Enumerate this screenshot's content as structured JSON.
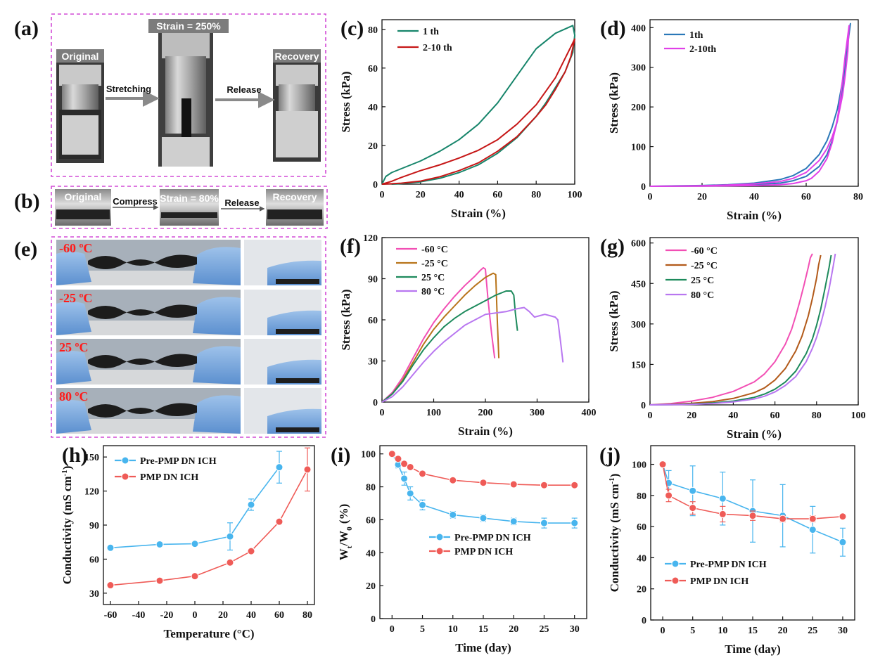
{
  "panels": {
    "a": {
      "label": "(a)",
      "strain_text": "Strain = 250%",
      "original": "Original",
      "recovery": "Recovery",
      "stretching": "Stretching",
      "release": "Release"
    },
    "b": {
      "label": "(b)",
      "original": "Original",
      "compress": "Compress",
      "strain_text": "Strain = 80%",
      "release": "Release",
      "recovery": "Recovery"
    },
    "e": {
      "label": "(e)",
      "temps": [
        "-60 ºC",
        "-25 ºC",
        "25 ºC",
        "80 ºC"
      ]
    }
  },
  "colors": {
    "teal": "#17856b",
    "red": "#c61717",
    "blue": "#2a78b8",
    "magenta": "#e040e8",
    "pink": "#f24fb4",
    "brown": "#b8741a",
    "green": "#1d8a5c",
    "violet": "#b877f0",
    "darkorange": "#b25a1a",
    "cyan": "#48b5ee",
    "salmon": "#ef5b57",
    "dashed_frame": "#d24bd6"
  },
  "chart_data": [
    {
      "id": "c",
      "panel_label": "(c)",
      "type": "line",
      "xlabel": "Strain (%)",
      "ylabel": "Stress (kPa)",
      "xlim": [
        0,
        100
      ],
      "ylim": [
        0,
        85
      ],
      "xticks": [
        "0",
        "20",
        "40",
        "60",
        "80",
        "100"
      ],
      "yticks": [
        "0",
        "20",
        "40",
        "60",
        "80"
      ],
      "legend": "top-left",
      "series": [
        {
          "name": "1 th",
          "color": "#17856b",
          "x": [
            0,
            2,
            5,
            10,
            20,
            30,
            40,
            50,
            60,
            70,
            80,
            90,
            99,
            100,
            99,
            95,
            90,
            85,
            80,
            70,
            60,
            50,
            40,
            30,
            20,
            10,
            5
          ],
          "y": [
            0,
            4,
            6,
            8,
            12,
            17,
            23,
            31,
            42,
            56,
            70,
            78,
            82,
            77,
            68,
            58,
            50,
            42,
            35,
            24,
            16,
            10,
            6,
            3,
            1.2,
            0.3,
            0
          ]
        },
        {
          "name": "2-10 th",
          "color": "#c61717",
          "x": [
            0,
            5,
            10,
            20,
            30,
            40,
            50,
            60,
            70,
            80,
            90,
            100,
            98,
            95,
            90,
            85,
            80,
            70,
            60,
            50,
            40,
            30,
            20,
            10,
            5,
            0
          ],
          "y": [
            0,
            1.5,
            3.5,
            7,
            10,
            13.5,
            17.5,
            23,
            31,
            41,
            55,
            75,
            66,
            58,
            49,
            41,
            35,
            24.5,
            17,
            11,
            7,
            3.8,
            1.6,
            0.5,
            0.2,
            0
          ]
        }
      ]
    },
    {
      "id": "d",
      "panel_label": "(d)",
      "type": "line",
      "xlabel": "Strain (%)",
      "ylabel": "Stress (kPa)",
      "xlim": [
        0,
        80
      ],
      "ylim": [
        0,
        420
      ],
      "xticks": [
        "0",
        "20",
        "40",
        "60",
        "80"
      ],
      "yticks": [
        "0",
        "100",
        "200",
        "300",
        "400"
      ],
      "legend": "top-left",
      "series": [
        {
          "name": "1th",
          "color": "#2a78b8",
          "x": [
            0,
            10,
            20,
            30,
            40,
            50,
            55,
            60,
            65,
            68,
            70,
            72,
            74,
            75,
            76,
            76.5,
            77,
            76,
            75,
            74,
            73,
            72,
            70,
            68,
            65,
            60,
            55,
            50,
            40,
            30,
            20,
            10,
            0
          ],
          "y": [
            0,
            1,
            2,
            4,
            8,
            17,
            27,
            45,
            80,
            115,
            150,
            195,
            265,
            310,
            360,
            390,
            410,
            360,
            300,
            250,
            205,
            165,
            115,
            80,
            50,
            25,
            14,
            8,
            4,
            2,
            1,
            0.5,
            0
          ]
        },
        {
          "name": "2-10th",
          "color": "#e040e8",
          "x": [
            0,
            10,
            20,
            30,
            40,
            50,
            55,
            60,
            65,
            68,
            70,
            72,
            74,
            75,
            76,
            76.5,
            75,
            74,
            73,
            72,
            70,
            68,
            65,
            62,
            60,
            55,
            50,
            40,
            30,
            20,
            10,
            0
          ],
          "y": [
            0,
            0.5,
            1.5,
            3,
            6,
            12,
            20,
            35,
            65,
            95,
            125,
            165,
            230,
            280,
            340,
            405,
            330,
            270,
            215,
            170,
            110,
            70,
            38,
            20,
            14,
            7,
            4,
            2,
            1,
            0.5,
            0.2,
            0
          ]
        }
      ]
    },
    {
      "id": "f",
      "panel_label": "(f)",
      "type": "line",
      "xlabel": "Strain (%)",
      "ylabel": "Stress (kPa)",
      "xlim": [
        0,
        400
      ],
      "ylim": [
        0,
        120
      ],
      "xticks": [
        "0",
        "100",
        "200",
        "300",
        "400"
      ],
      "yticks": [
        "0",
        "30",
        "60",
        "90",
        "120"
      ],
      "legend": "top-left",
      "series": [
        {
          "name": "-60 °C",
          "color": "#f24fb4",
          "x": [
            0,
            20,
            40,
            60,
            80,
            100,
            120,
            140,
            160,
            180,
            190,
            196,
            200,
            205,
            212,
            218
          ],
          "y": [
            0,
            7,
            18,
            32,
            46,
            58,
            68,
            77,
            85,
            92,
            96,
            98,
            97,
            75,
            50,
            32
          ]
        },
        {
          "name": "-25 °C",
          "color": "#b8741a",
          "x": [
            0,
            20,
            40,
            60,
            80,
            100,
            120,
            140,
            160,
            180,
            200,
            215,
            220,
            223,
            226
          ],
          "y": [
            0,
            6,
            16,
            29,
            42,
            53,
            62,
            70,
            78,
            85,
            91,
            94,
            93,
            60,
            32
          ]
        },
        {
          "name": "25 °C",
          "color": "#1d8a5c",
          "x": [
            0,
            20,
            40,
            60,
            80,
            100,
            120,
            140,
            160,
            180,
            200,
            220,
            240,
            250,
            255,
            258,
            262
          ],
          "y": [
            0,
            6,
            15,
            27,
            38,
            47,
            55,
            61,
            66,
            70,
            74,
            78,
            81,
            81,
            78,
            65,
            52
          ]
        },
        {
          "name": "80 °C",
          "color": "#b877f0",
          "x": [
            0,
            20,
            40,
            60,
            80,
            100,
            120,
            140,
            160,
            180,
            200,
            220,
            240,
            260,
            275,
            285,
            295,
            305,
            315,
            325,
            335,
            340,
            345,
            350
          ],
          "y": [
            0,
            4,
            11,
            20,
            29,
            37,
            44,
            50,
            56,
            60,
            64,
            65,
            66,
            68,
            69,
            66,
            62,
            63,
            64,
            63,
            62,
            60,
            45,
            29
          ]
        }
      ]
    },
    {
      "id": "g",
      "panel_label": "(g)",
      "type": "line",
      "xlabel": "Strain (%)",
      "ylabel": "Stress (kPa)",
      "xlim": [
        0,
        100
      ],
      "ylim": [
        0,
        620
      ],
      "xticks": [
        "0",
        "20",
        "40",
        "60",
        "80",
        "100"
      ],
      "yticks": [
        "0",
        "150",
        "300",
        "450",
        "600"
      ],
      "legend": "top-left",
      "series": [
        {
          "name": "-60 °C",
          "color": "#f24fb4",
          "x": [
            0,
            10,
            20,
            30,
            40,
            50,
            55,
            60,
            65,
            68,
            70,
            72,
            74,
            76,
            77,
            78
          ],
          "y": [
            0,
            5,
            14,
            28,
            50,
            85,
            115,
            160,
            225,
            280,
            330,
            385,
            445,
            510,
            545,
            560
          ]
        },
        {
          "name": "-25 °C",
          "color": "#b25a1a",
          "x": [
            0,
            10,
            20,
            30,
            40,
            50,
            55,
            60,
            65,
            70,
            73,
            76,
            78,
            80,
            81,
            82
          ],
          "y": [
            0,
            2,
            6,
            12,
            24,
            45,
            63,
            92,
            135,
            200,
            255,
            330,
            395,
            470,
            520,
            555
          ]
        },
        {
          "name": "25 °C",
          "color": "#1d8a5c",
          "x": [
            0,
            10,
            20,
            30,
            40,
            50,
            55,
            60,
            65,
            70,
            75,
            78,
            80,
            82,
            84,
            86,
            87
          ],
          "y": [
            0,
            1,
            3,
            7,
            14,
            28,
            40,
            58,
            85,
            125,
            190,
            245,
            295,
            355,
            430,
            510,
            555
          ]
        },
        {
          "name": "80 °C",
          "color": "#b877f0",
          "x": [
            0,
            10,
            20,
            30,
            40,
            50,
            55,
            60,
            65,
            70,
            75,
            78,
            80,
            82,
            84,
            86,
            88,
            89
          ],
          "y": [
            0,
            0.5,
            2,
            5,
            11,
            22,
            32,
            48,
            72,
            105,
            160,
            210,
            250,
            300,
            360,
            430,
            515,
            560
          ]
        }
      ]
    },
    {
      "id": "h",
      "panel_label": "(h)",
      "type": "line",
      "xlabel": "Temperature (°C)",
      "ylabel": "Conductivity (mS cm",
      "ylabel_sup": "-1",
      "ylabel_end": ")",
      "xlim": [
        -65,
        85
      ],
      "ylim": [
        20,
        160
      ],
      "xticks": [
        "-60",
        "-40",
        "-20",
        "0",
        "20",
        "40",
        "60",
        "80"
      ],
      "yticks": [
        "30",
        "60",
        "90",
        "120",
        "150"
      ],
      "legend": "top-left",
      "series": [
        {
          "name": "Pre-PMP DN ICH",
          "color": "#48b5ee",
          "x": [
            -60,
            -25,
            0,
            25,
            40,
            60
          ],
          "y": [
            70,
            73,
            73.5,
            80,
            108,
            141
          ],
          "err": [
            2,
            2,
            2,
            12,
            5,
            14
          ]
        },
        {
          "name": "PMP DN ICH",
          "color": "#ef5b57",
          "x": [
            -60,
            -25,
            0,
            25,
            40,
            60,
            80
          ],
          "y": [
            37,
            41,
            45,
            57,
            67,
            93,
            139
          ],
          "err": [
            1,
            1,
            2,
            2,
            2,
            2,
            19
          ]
        }
      ]
    },
    {
      "id": "i",
      "panel_label": "(i)",
      "type": "line",
      "xlabel": "Time (day)",
      "ylabel": "W",
      "ylabel_sub1": "t",
      "ylabel_mid": "/W",
      "ylabel_sub2": "0",
      "ylabel_end": " (%)",
      "xlim": [
        -2,
        32
      ],
      "ylim": [
        0,
        105
      ],
      "xticks": [
        "0",
        "5",
        "10",
        "15",
        "20",
        "25",
        "30"
      ],
      "yticks": [
        "0",
        "20",
        "40",
        "60",
        "80",
        "100"
      ],
      "legend": "center",
      "series": [
        {
          "name": "Pre-PMP DN ICH",
          "color": "#48b5ee",
          "x": [
            0,
            1,
            2,
            3,
            5,
            10,
            15,
            20,
            25,
            30
          ],
          "y": [
            100,
            93.5,
            85,
            76,
            69,
            63,
            61,
            59,
            58,
            58
          ],
          "err": [
            0,
            2,
            4,
            4,
            3,
            2,
            2,
            2,
            3,
            3
          ]
        },
        {
          "name": "PMP DN ICH",
          "color": "#ef5b57",
          "x": [
            0,
            1,
            2,
            3,
            5,
            10,
            15,
            20,
            25,
            30
          ],
          "y": [
            100,
            97,
            94,
            92,
            88,
            84,
            82.5,
            81.5,
            81,
            81
          ],
          "err": [
            0,
            0,
            0,
            0,
            0,
            0,
            0,
            0,
            0,
            0
          ]
        }
      ]
    },
    {
      "id": "j",
      "panel_label": "(j)",
      "type": "line",
      "xlabel": "Time (day)",
      "ylabel": "Conductivity (mS cm",
      "ylabel_sup": "-1",
      "ylabel_end": ")",
      "xlim": [
        -2,
        32
      ],
      "ylim": [
        0,
        112
      ],
      "xticks": [
        "0",
        "5",
        "10",
        "15",
        "20",
        "25",
        "30"
      ],
      "yticks": [
        "0",
        "20",
        "40",
        "60",
        "80",
        "100"
      ],
      "legend": "bottom-left",
      "series": [
        {
          "name": "Pre-PMP DN ICH",
          "color": "#48b5ee",
          "x": [
            0,
            1,
            5,
            10,
            15,
            20,
            25,
            30
          ],
          "y": [
            100,
            88,
            83,
            78,
            70,
            67,
            58,
            50
          ],
          "err": [
            0,
            8,
            16,
            17,
            20,
            20,
            15,
            9
          ]
        },
        {
          "name": "PMP DN ICH",
          "color": "#ef5b57",
          "x": [
            0,
            1,
            5,
            10,
            15,
            20,
            25,
            30
          ],
          "y": [
            100,
            80,
            72,
            68,
            67,
            65,
            65,
            66.5
          ],
          "err": [
            0,
            4,
            4,
            5,
            3,
            2,
            2,
            1
          ]
        }
      ]
    }
  ]
}
